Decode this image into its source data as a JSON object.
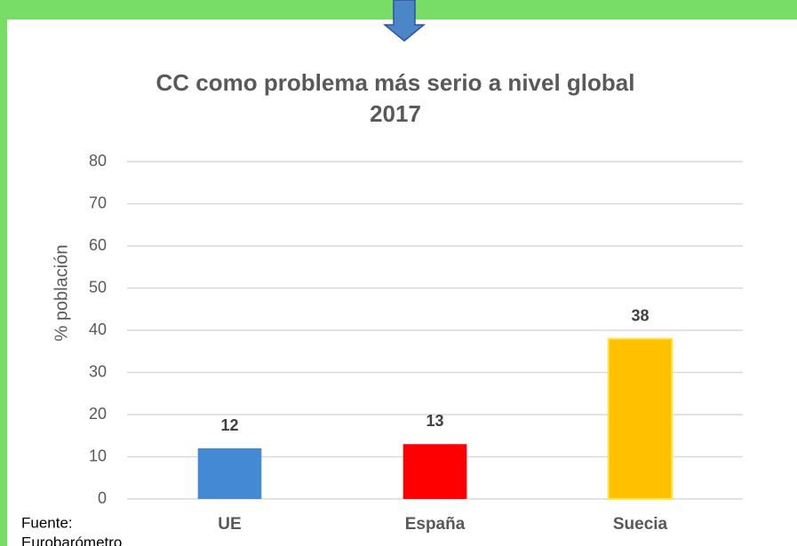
{
  "chart_data": {
    "type": "bar",
    "title": "CC como problema más serio a nivel global",
    "subtitle": "2017",
    "y_label": "% población",
    "categories": [
      "UE",
      "España",
      "Suecia"
    ],
    "values": [
      12,
      13,
      38
    ],
    "colors": [
      "#4389d4",
      "#ff0000",
      "#ffc000"
    ],
    "ylim": [
      0,
      80
    ],
    "yticks": [
      0,
      10,
      20,
      30,
      40,
      50,
      60,
      70,
      80
    ],
    "grid": true,
    "source": [
      "Fuente:",
      "Eurobarómetro"
    ]
  }
}
